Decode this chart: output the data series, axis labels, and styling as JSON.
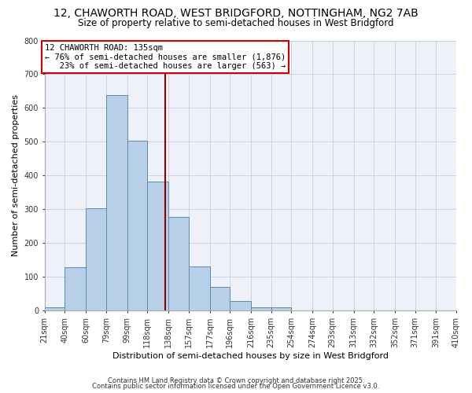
{
  "title1": "12, CHAWORTH ROAD, WEST BRIDGFORD, NOTTINGHAM, NG2 7AB",
  "title2": "Size of property relative to semi-detached houses in West Bridgford",
  "xlabel": "Distribution of semi-detached houses by size in West Bridgford",
  "ylabel": "Number of semi-detached properties",
  "bin_edges": [
    21,
    40,
    60,
    79,
    99,
    118,
    138,
    157,
    177,
    196,
    216,
    235,
    254,
    274,
    293,
    313,
    332,
    352,
    371,
    391,
    410
  ],
  "bar_heights": [
    8,
    128,
    302,
    638,
    503,
    383,
    278,
    130,
    70,
    27,
    10,
    8,
    0,
    0,
    0,
    0,
    0,
    0,
    0,
    0
  ],
  "bar_color": "#b8cfe8",
  "bar_edge_color": "#5a8ab0",
  "property_size": 135,
  "vline_color": "#8b0000",
  "annotation_line1": "12 CHAWORTH ROAD: 135sqm",
  "annotation_line2": "← 76% of semi-detached houses are smaller (1,876)",
  "annotation_line3": "   23% of semi-detached houses are larger (563) →",
  "annotation_box_color": "#ffffff",
  "annotation_box_edge": "#cc0000",
  "ylim": [
    0,
    800
  ],
  "yticks": [
    0,
    100,
    200,
    300,
    400,
    500,
    600,
    700,
    800
  ],
  "footer1": "Contains HM Land Registry data © Crown copyright and database right 2025.",
  "footer2": "Contains public sector information licensed under the Open Government Licence v3.0.",
  "bg_color": "#eef2f8",
  "title1_fontsize": 10,
  "title2_fontsize": 8.5,
  "tick_fontsize": 7,
  "label_fontsize": 8,
  "annot_fontsize": 7.5,
  "footer_fontsize": 6
}
